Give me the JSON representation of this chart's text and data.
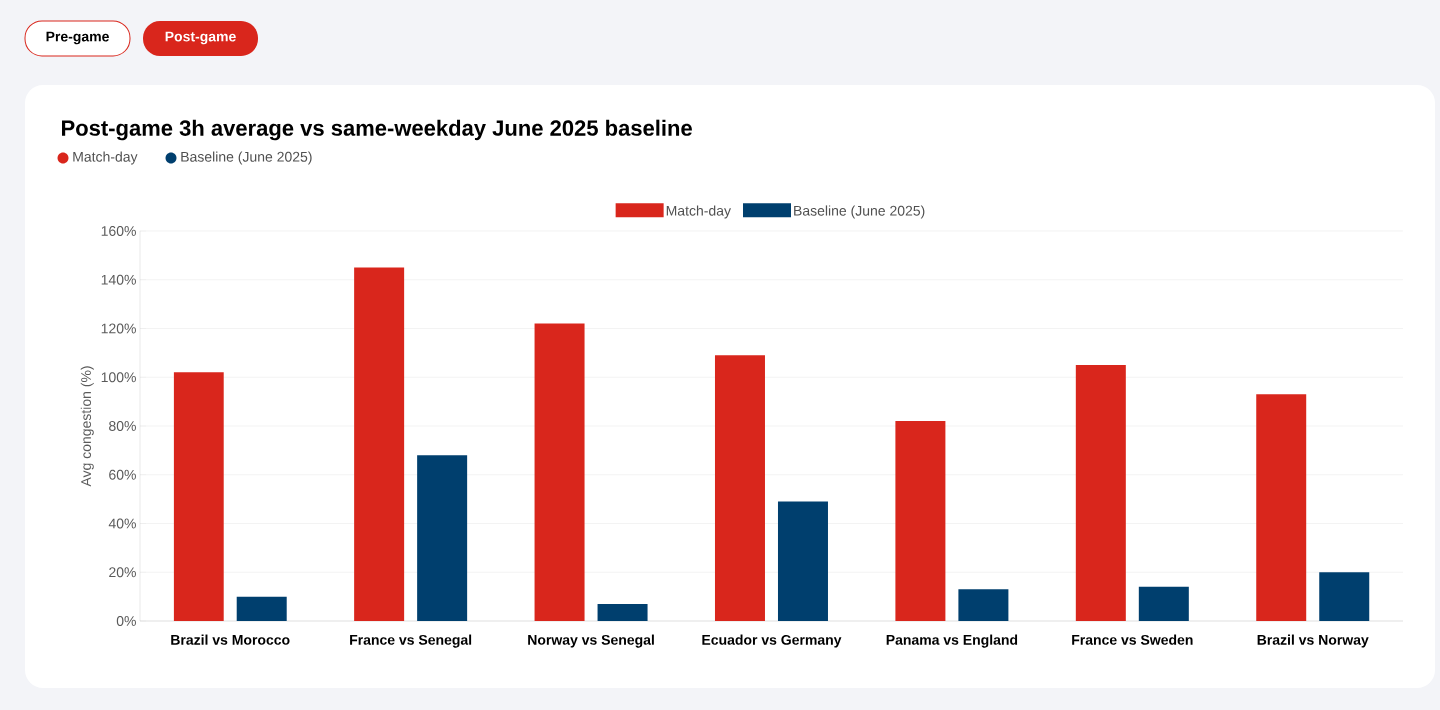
{
  "chart_data": {
    "type": "bar",
    "title": "Post-game 3h average vs same-weekday June 2025 baseline",
    "ylabel": "Avg congestion (%)",
    "annotations": [
      "Pre-game",
      "Post-game"
    ],
    "categories": [
      "Brazil vs Morocco",
      "France vs Senegal",
      "Norway vs Senegal",
      "Ecuador vs Germany",
      "Panama vs England",
      "France vs Sweden",
      "Brazil vs Norway"
    ],
    "series": [
      {
        "name": "Match-day",
        "color": "#d9261c",
        "values": [
          102,
          145,
          122,
          109,
          82,
          105,
          93
        ]
      },
      {
        "name": "Baseline (June 2025)",
        "color": "#003f6e",
        "values": [
          10,
          68,
          7,
          49,
          13,
          14,
          20
        ]
      }
    ],
    "ylim": [
      0,
      160
    ],
    "yticks": [
      {
        "value": 0,
        "label": "0%"
      },
      {
        "value": 20,
        "label": "20%"
      },
      {
        "value": 40,
        "label": "40%"
      },
      {
        "value": 60,
        "label": "60%"
      },
      {
        "value": 80,
        "label": "80%"
      },
      {
        "value": 100,
        "label": "100%"
      },
      {
        "value": 120,
        "label": "120%"
      },
      {
        "value": 140,
        "label": "140%"
      },
      {
        "value": 160,
        "label": "160%"
      }
    ],
    "grid": "y",
    "legend": "top"
  }
}
